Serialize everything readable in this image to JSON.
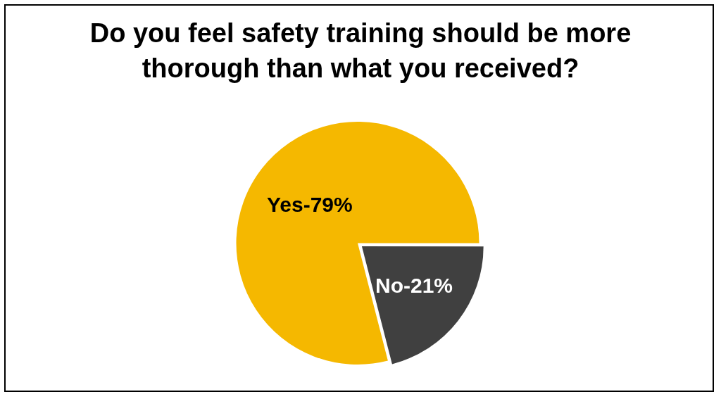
{
  "chart_data": {
    "type": "pie",
    "title": "Do you feel safety training should be more thorough than what you received?",
    "categories": [
      "Yes-79%",
      "No-21%"
    ],
    "values": [
      79,
      21
    ],
    "colors": [
      "#f5b800",
      "#404040"
    ],
    "legend": false
  }
}
